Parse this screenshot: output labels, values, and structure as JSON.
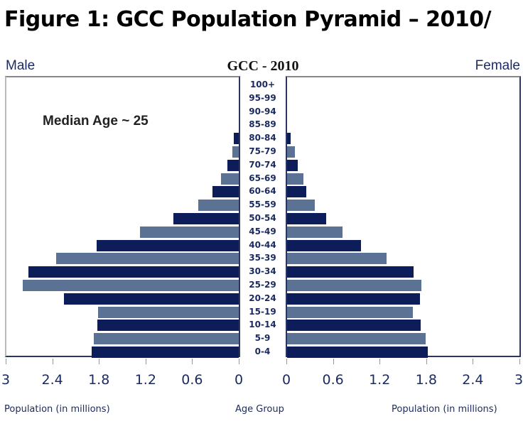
{
  "title": "Figure 1: GCC Population Pyramid – 2010/",
  "chart_data": {
    "type": "bar",
    "orientation": "population-pyramid",
    "title": "GCC - 2010",
    "left_label": "Male",
    "right_label": "Female",
    "annotation": "Median Age ~ 25",
    "xlabel_left": "Population (in millions)",
    "xlabel_center": "Age Group",
    "xlabel_right": "Population (in millions)",
    "xlim": [
      0,
      3
    ],
    "ticks": [
      "0",
      "0.6",
      "1.2",
      "1.8",
      "2.4",
      "3"
    ],
    "categories": [
      "0-4",
      "5-9",
      "10-14",
      "15-19",
      "20-24",
      "25-29",
      "30-34",
      "35-39",
      "40-44",
      "45-49",
      "50-54",
      "55-59",
      "60-64",
      "65-69",
      "70-74",
      "75-79",
      "80-84",
      "85-89",
      "90-94",
      "95-99",
      "100+"
    ],
    "series": [
      {
        "name": "Male",
        "values": [
          1.89,
          1.87,
          1.82,
          1.81,
          2.25,
          2.78,
          2.71,
          2.35,
          1.83,
          1.27,
          0.84,
          0.52,
          0.34,
          0.23,
          0.15,
          0.08,
          0.06,
          0,
          0,
          0,
          0
        ]
      },
      {
        "name": "Female",
        "values": [
          1.81,
          1.78,
          1.72,
          1.62,
          1.71,
          1.73,
          1.63,
          1.28,
          0.95,
          0.71,
          0.5,
          0.36,
          0.25,
          0.21,
          0.14,
          0.1,
          0.05,
          0,
          0,
          0,
          0
        ]
      }
    ],
    "colors": {
      "dark": "#0c1d5a",
      "light": "#5b7294"
    }
  }
}
